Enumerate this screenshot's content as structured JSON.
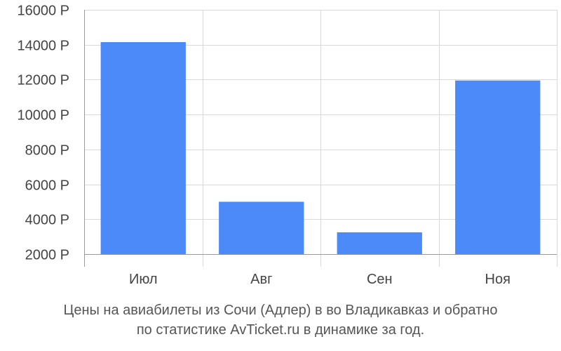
{
  "chart_data": {
    "type": "bar",
    "categories": [
      "Июл",
      "Авг",
      "Сен",
      "Ноя"
    ],
    "values": [
      14150,
      5000,
      3250,
      11950
    ],
    "ylim": [
      2000,
      16000
    ],
    "yticks": [
      2000,
      4000,
      6000,
      8000,
      10000,
      12000,
      14000,
      16000
    ],
    "ytick_suffix": " Р",
    "grid": true,
    "bar_color": "#4d8af9",
    "grid_color": "#d9d9d9",
    "axis_color": "#999999"
  },
  "caption": {
    "line1": "Цены на авиабилеты из Сочи (Адлер) в во Владикавказ и обратно",
    "line2": "по статистике AvTicket.ru в динамике за год."
  }
}
